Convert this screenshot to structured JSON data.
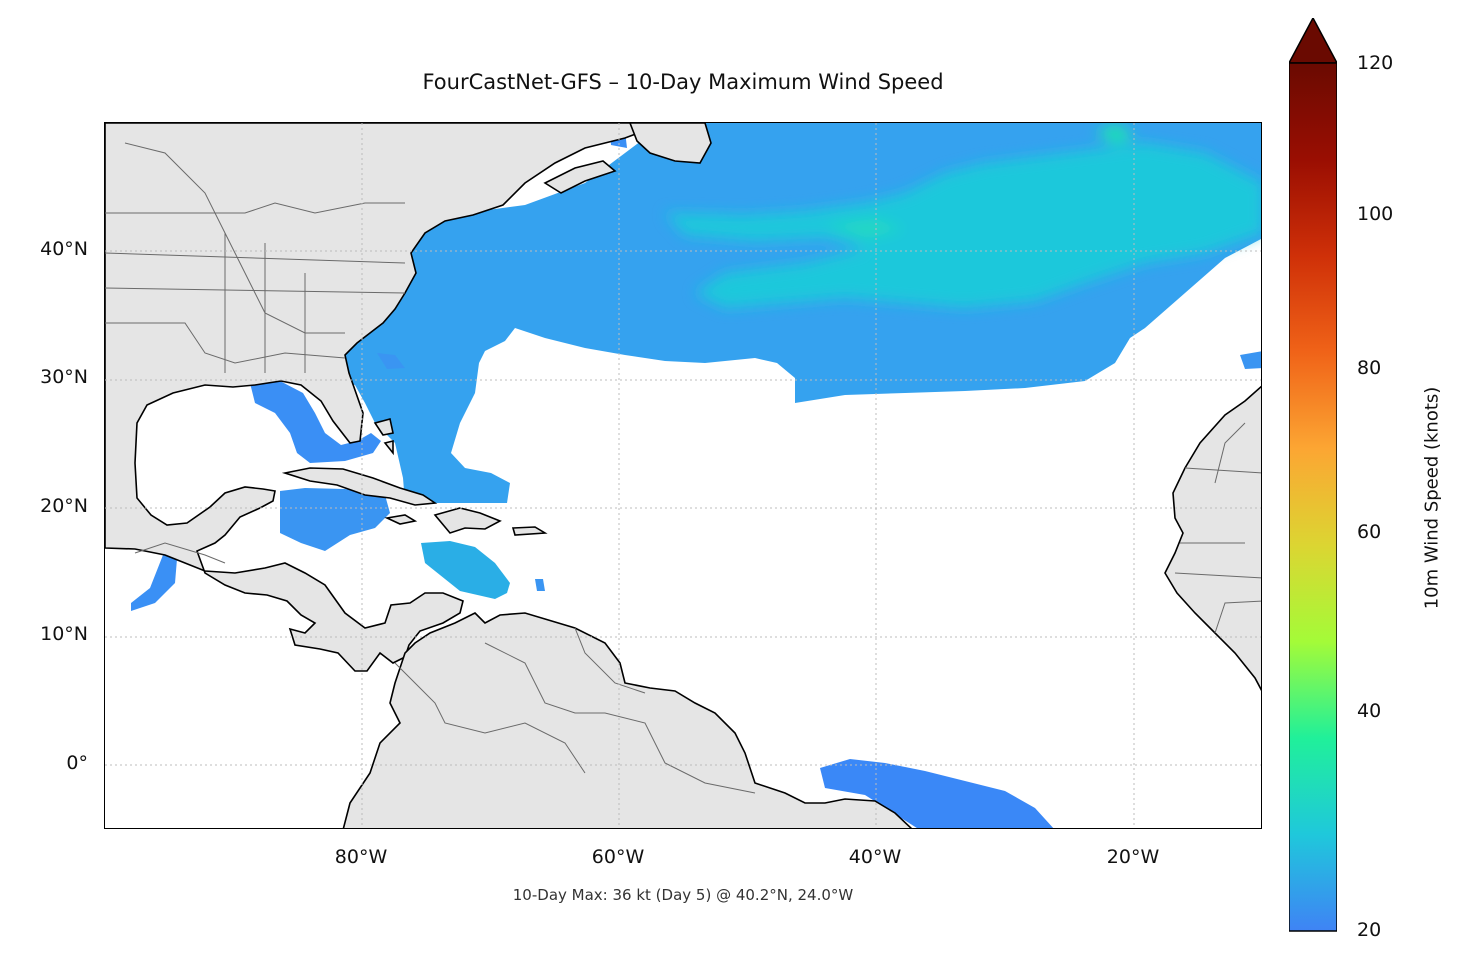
{
  "chart_data": {
    "type": "heatmap",
    "title": "FourCastNet-GFS – 10-Day Maximum Wind Speed",
    "footnote": "10-Day Max: 36 kt (Day 5) @ 40.2°N, 24.0°W",
    "x_ticks": [
      "80°W",
      "60°W",
      "40°W",
      "20°W"
    ],
    "y_ticks": [
      "40°N",
      "30°N",
      "20°N",
      "10°N",
      "0°"
    ],
    "colorbar": {
      "label": "10m Wind Speed (knots)",
      "ticks": [
        "120",
        "100",
        "80",
        "60",
        "40",
        "20"
      ],
      "range": [
        20,
        120
      ],
      "extend": "max",
      "colors": [
        "#3f83f5",
        "#1fc8db",
        "#20f09a",
        "#a4fb38",
        "#dcd532",
        "#fca633",
        "#f06318",
        "#cf3008",
        "#9a0e02",
        "#6a0a01"
      ]
    },
    "extent": {
      "lon": [
        -100,
        -10
      ],
      "lat": [
        -5,
        50
      ]
    },
    "grid": true,
    "max_point": {
      "value_kt": 36,
      "day": 5,
      "lat": 40.2,
      "lon": -24.0
    }
  }
}
